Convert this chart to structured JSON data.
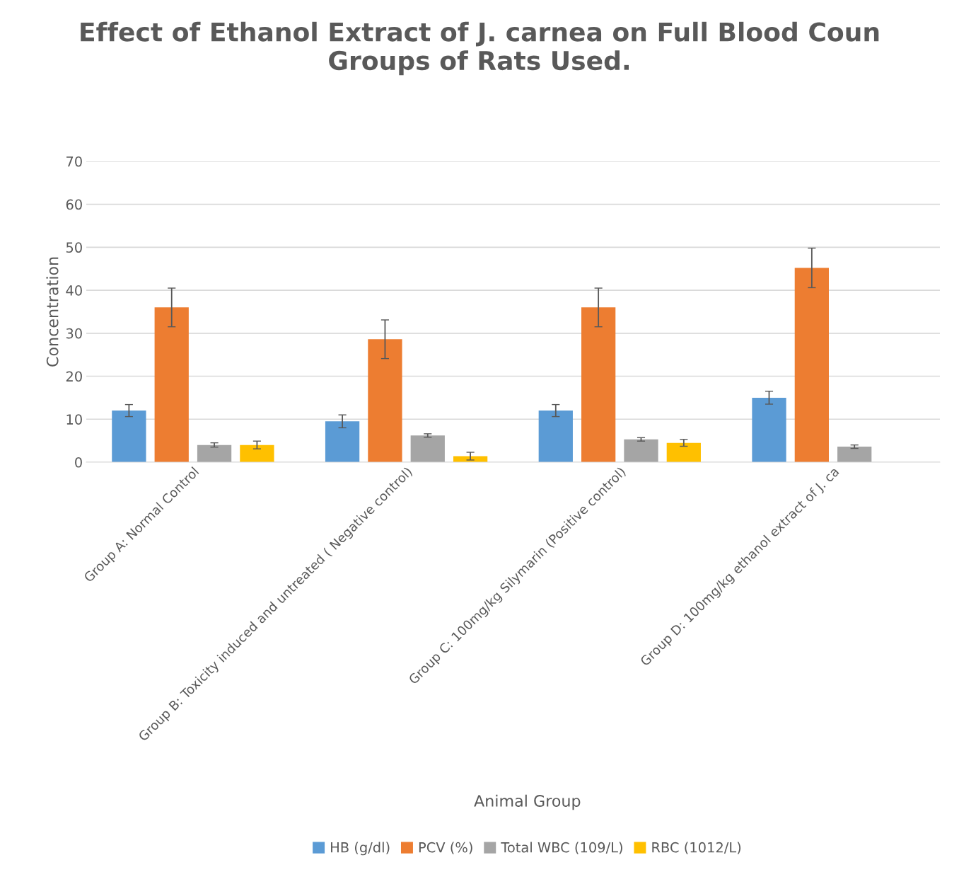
{
  "chart_data": {
    "type": "bar",
    "title": "Effect of Ethanol Extract of J. carnea on Full Blood Coun\nGroups of Rats Used.",
    "xlabel": "Animal Group",
    "ylabel": "Concentration",
    "categories": [
      "Group A: Normal Control",
      "Group B: Toxicity induced and untreated ( Negative control)",
      "Group C: 100mg/kg Silymarin (Positive control)",
      "Group D: 100mg/kg ethanol extract of J. ca"
    ],
    "series": [
      {
        "name": "HB (g/dl)",
        "color": "#5b9bd5",
        "values": [
          12,
          9.5,
          12,
          15
        ],
        "errors": [
          1.4,
          1.5,
          1.4,
          1.5
        ]
      },
      {
        "name": "PCV (%)",
        "color": "#ed7d31",
        "values": [
          36,
          28.6,
          36,
          45.2
        ],
        "errors": [
          4.5,
          4.5,
          4.5,
          4.6
        ]
      },
      {
        "name": "Total WBC (109/L)",
        "color": "#a5a5a5",
        "values": [
          4,
          6.2,
          5.3,
          3.6
        ],
        "errors": [
          0.5,
          0.4,
          0.4,
          0.4
        ]
      },
      {
        "name": "RBC (1012/L)",
        "color": "#ffc000",
        "values": [
          4,
          1.4,
          4.5,
          null
        ],
        "errors": [
          0.9,
          0.9,
          0.8,
          null
        ]
      }
    ],
    "ylim": [
      0,
      70
    ],
    "yticks": [
      0,
      10,
      20,
      30,
      40,
      50,
      60,
      70
    ],
    "grid": "y",
    "legend": "bottom"
  }
}
